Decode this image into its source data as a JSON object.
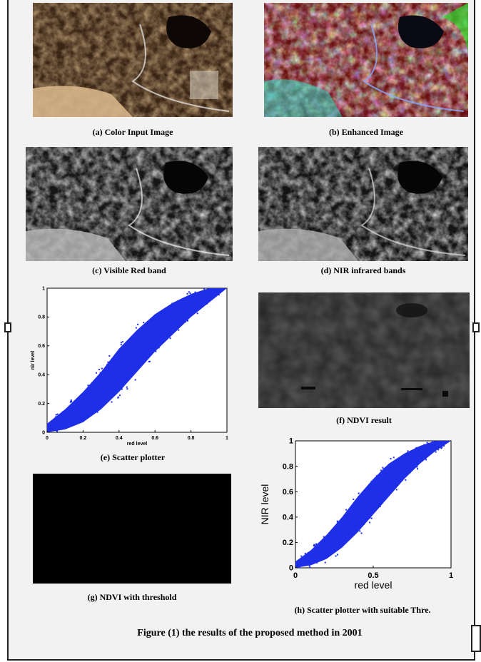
{
  "figure": {
    "caption": "Figure (1) the results of the proposed method in 2001"
  },
  "panels": {
    "a": {
      "caption": "(a)  Color Input Image"
    },
    "b": {
      "caption": "(b)  Enhanced Image"
    },
    "c": {
      "caption": "(c)  Visible Red band"
    },
    "d": {
      "caption": "(d)  NIR infrared bands"
    },
    "e": {
      "caption": "(e)  Scatter plotter"
    },
    "f": {
      "caption": "(f)  NDVI result"
    },
    "g": {
      "caption": "(g)  NDVI with threshold"
    },
    "h": {
      "caption": "(h)  Scatter plotter with suitable Thre."
    }
  },
  "chart_data": [
    {
      "type": "scatter",
      "panel": "e",
      "xlabel": "red level",
      "ylabel": "nir level",
      "xlim": [
        0,
        1
      ],
      "ylim": [
        0,
        1
      ],
      "xticks": [
        "0",
        "0.2",
        "0.4",
        "0.6",
        "0.8",
        "1"
      ],
      "yticks": [
        "0",
        "0.2",
        "0.4",
        "0.6",
        "0.8",
        "1"
      ],
      "grid": false,
      "color": "#1f2fe8",
      "point_cloud_band": {
        "x": [
          0,
          0.1,
          0.2,
          0.3,
          0.4,
          0.5,
          0.6,
          0.7,
          0.8,
          0.9,
          1.0
        ],
        "y_low": [
          0,
          0.02,
          0.07,
          0.16,
          0.28,
          0.42,
          0.56,
          0.68,
          0.8,
          0.9,
          1.0
        ],
        "y_high": [
          0.06,
          0.16,
          0.28,
          0.42,
          0.58,
          0.71,
          0.82,
          0.9,
          0.96,
          1.0,
          1.0
        ]
      }
    },
    {
      "type": "scatter",
      "panel": "h",
      "xlabel": "red level",
      "ylabel": "NIR level",
      "xlim": [
        0,
        1
      ],
      "ylim": [
        0,
        1
      ],
      "xticks": [
        "0",
        "0.5",
        "1"
      ],
      "yticks": [
        "0",
        "0.2",
        "0.4",
        "0.6",
        "0.8",
        "1"
      ],
      "grid": false,
      "color": "#1f2fe8",
      "point_cloud_band": {
        "x": [
          0,
          0.1,
          0.2,
          0.3,
          0.4,
          0.5,
          0.6,
          0.7,
          0.8,
          0.9,
          1.0
        ],
        "y_low": [
          0,
          0.02,
          0.07,
          0.16,
          0.28,
          0.42,
          0.56,
          0.7,
          0.82,
          0.92,
          1.0
        ],
        "y_high": [
          0.05,
          0.14,
          0.26,
          0.4,
          0.56,
          0.7,
          0.82,
          0.9,
          0.96,
          1.0,
          1.0
        ]
      }
    }
  ]
}
